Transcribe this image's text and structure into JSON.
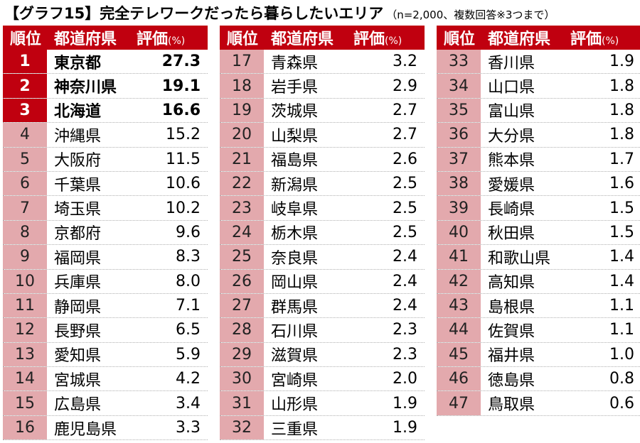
{
  "title": {
    "main": "【グラフ15】完全テレワークだったら暮らしたいエリア",
    "note": "（n=2,000、複数回答※3つまで）"
  },
  "header": {
    "rank": "順位",
    "prefecture": "都道府県",
    "score": "評価",
    "unit": "(%)"
  },
  "chart_data": {
    "type": "table",
    "title": "【グラフ15】完全テレワークだったら暮らしたいエリア",
    "subtitle": "（n=2,000、複数回答※3つまで）",
    "columns": [
      "順位",
      "都道府県",
      "評価(%)"
    ],
    "rows": [
      {
        "rank": "1",
        "pref": "東京都",
        "score": "27.3"
      },
      {
        "rank": "2",
        "pref": "神奈川県",
        "score": "19.1"
      },
      {
        "rank": "3",
        "pref": "北海道",
        "score": "16.6"
      },
      {
        "rank": "4",
        "pref": "沖縄県",
        "score": "15.2"
      },
      {
        "rank": "5",
        "pref": "大阪府",
        "score": "11.5"
      },
      {
        "rank": "6",
        "pref": "千葉県",
        "score": "10.6"
      },
      {
        "rank": "7",
        "pref": "埼玉県",
        "score": "10.2"
      },
      {
        "rank": "8",
        "pref": "京都府",
        "score": "9.6"
      },
      {
        "rank": "9",
        "pref": "福岡県",
        "score": "8.3"
      },
      {
        "rank": "10",
        "pref": "兵庫県",
        "score": "8.0"
      },
      {
        "rank": "11",
        "pref": "静岡県",
        "score": "7.1"
      },
      {
        "rank": "12",
        "pref": "長野県",
        "score": "6.5"
      },
      {
        "rank": "13",
        "pref": "愛知県",
        "score": "5.9"
      },
      {
        "rank": "14",
        "pref": "宮城県",
        "score": "4.2"
      },
      {
        "rank": "15",
        "pref": "広島県",
        "score": "3.4"
      },
      {
        "rank": "16",
        "pref": "鹿児島県",
        "score": "3.3"
      },
      {
        "rank": "17",
        "pref": "青森県",
        "score": "3.2"
      },
      {
        "rank": "18",
        "pref": "岩手県",
        "score": "2.9"
      },
      {
        "rank": "19",
        "pref": "茨城県",
        "score": "2.7"
      },
      {
        "rank": "20",
        "pref": "山梨県",
        "score": "2.7"
      },
      {
        "rank": "21",
        "pref": "福島県",
        "score": "2.6"
      },
      {
        "rank": "22",
        "pref": "新潟県",
        "score": "2.5"
      },
      {
        "rank": "23",
        "pref": "岐阜県",
        "score": "2.5"
      },
      {
        "rank": "24",
        "pref": "栃木県",
        "score": "2.5"
      },
      {
        "rank": "25",
        "pref": "奈良県",
        "score": "2.4"
      },
      {
        "rank": "26",
        "pref": "岡山県",
        "score": "2.4"
      },
      {
        "rank": "27",
        "pref": "群馬県",
        "score": "2.4"
      },
      {
        "rank": "28",
        "pref": "石川県",
        "score": "2.3"
      },
      {
        "rank": "29",
        "pref": "滋賀県",
        "score": "2.3"
      },
      {
        "rank": "30",
        "pref": "宮崎県",
        "score": "2.0"
      },
      {
        "rank": "31",
        "pref": "山形県",
        "score": "1.9"
      },
      {
        "rank": "32",
        "pref": "三重県",
        "score": "1.9"
      },
      {
        "rank": "33",
        "pref": "香川県",
        "score": "1.9"
      },
      {
        "rank": "34",
        "pref": "山口県",
        "score": "1.8"
      },
      {
        "rank": "35",
        "pref": "富山県",
        "score": "1.8"
      },
      {
        "rank": "36",
        "pref": "大分県",
        "score": "1.8"
      },
      {
        "rank": "37",
        "pref": "熊本県",
        "score": "1.7"
      },
      {
        "rank": "38",
        "pref": "愛媛県",
        "score": "1.6"
      },
      {
        "rank": "39",
        "pref": "長崎県",
        "score": "1.5"
      },
      {
        "rank": "40",
        "pref": "秋田県",
        "score": "1.5"
      },
      {
        "rank": "41",
        "pref": "和歌山県",
        "score": "1.4"
      },
      {
        "rank": "42",
        "pref": "高知県",
        "score": "1.4"
      },
      {
        "rank": "43",
        "pref": "島根県",
        "score": "1.1"
      },
      {
        "rank": "44",
        "pref": "佐賀県",
        "score": "1.1"
      },
      {
        "rank": "45",
        "pref": "福井県",
        "score": "1.0"
      },
      {
        "rank": "46",
        "pref": "徳島県",
        "score": "0.8"
      },
      {
        "rank": "47",
        "pref": "鳥取県",
        "score": "0.6"
      }
    ]
  },
  "colors": {
    "header_bg": "#c0000f",
    "top_rank_bg": "#c0000f",
    "rank_bg": "#e3a9ad"
  }
}
